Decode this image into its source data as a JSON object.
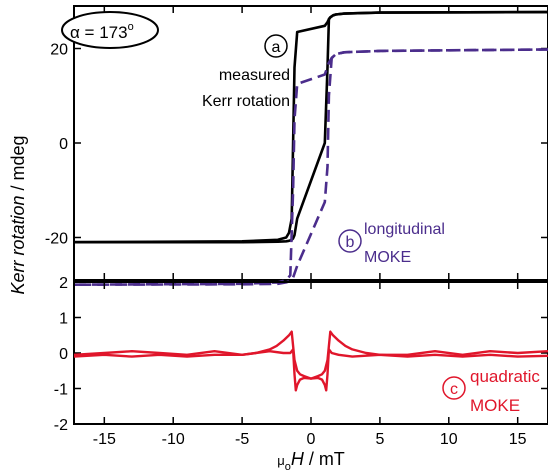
{
  "colors": {
    "measured": "#000000",
    "longitudinal": "#4b2d8c",
    "quadratic": "#e0162b"
  },
  "chart_data": [
    {
      "type": "line",
      "panel": "top",
      "ylabel_italic": "Kerr rotation",
      "ylabel_unit": " / mdeg",
      "xlim": [
        -17.2,
        17.2
      ],
      "ylim": [
        -29,
        29
      ],
      "yticks": [
        20,
        0,
        -20
      ],
      "ytick_labels": [
        "20",
        "0",
        "-20"
      ],
      "angle_label": "α = 173",
      "angle_degree": "o",
      "series": [
        {
          "key": "measured",
          "style": "solid",
          "x": [
            -17.2,
            -5,
            -2.4,
            -1.8,
            -1.6,
            -1.4,
            -1.3,
            -1.2,
            -1.0,
            1.0,
            1.2,
            1.3,
            1.4,
            1.6,
            1.8,
            2.4,
            5,
            17.2
          ],
          "y": [
            -21,
            -20.8,
            -20.5,
            -20.0,
            -19.0,
            -16.0,
            0,
            16.0,
            23.5,
            24.8,
            25.6,
            26.2,
            26.6,
            27.0,
            27.2,
            27.4,
            27.6,
            27.7
          ],
          "x_return": [
            17.2,
            5,
            2.4,
            1.8,
            1.6,
            1.4,
            1.3,
            1.2,
            1.0,
            -1.0,
            -1.2,
            -1.3,
            -1.4,
            -1.6,
            -1.8,
            -2.4,
            -5,
            -17.2
          ],
          "y_return": [
            27.7,
            27.6,
            27.4,
            27.2,
            27.0,
            26.6,
            26.2,
            16.0,
            0,
            -16.0,
            -19.5,
            -20.2,
            -20.5,
            -20.7,
            -20.8,
            -20.9,
            -21,
            -21
          ]
        },
        {
          "key": "longitudinal",
          "style": "dashed",
          "x": [
            -17.2,
            -5,
            -2.4,
            -1.8,
            -1.5,
            -1.3,
            -1.2,
            -1.0,
            1.0,
            1.3,
            1.5,
            1.8,
            2.4,
            5,
            17.2
          ],
          "y": [
            -30,
            -29.8,
            -29.5,
            -29.0,
            -28.0,
            -10,
            5,
            12.5,
            14.5,
            17.0,
            18.0,
            18.8,
            19.2,
            19.5,
            19.8
          ],
          "x_return": [
            17.2,
            5,
            2.4,
            1.8,
            1.5,
            1.3,
            1.2,
            1.0,
            -1.0,
            -1.3,
            -1.5,
            -1.8,
            -2.4,
            -5,
            -17.2
          ],
          "y_return": [
            19.8,
            19.5,
            19.2,
            18.8,
            18.0,
            10,
            -5,
            -12.5,
            -26.0,
            -28.5,
            -29.2,
            -29.5,
            -29.8,
            -29.9,
            -30
          ]
        }
      ],
      "annotations": [
        {
          "key": "a",
          "badge": "a",
          "lines": [
            "measured",
            "Kerr rotation"
          ]
        },
        {
          "key": "b",
          "badge": "b",
          "lines": [
            "longitudinal",
            "MOKE"
          ]
        }
      ]
    },
    {
      "type": "line",
      "panel": "bottom",
      "xlabel_prefix": "μ",
      "xlabel_sub": "o",
      "xlabel_italic": "H",
      "xlabel_unit": " / mT",
      "xlim": [
        -17.2,
        17.2
      ],
      "ylim": [
        -2,
        2
      ],
      "xticks": [
        -15,
        -10,
        -5,
        0,
        5,
        10,
        15
      ],
      "xtick_labels": [
        "-15",
        "-10",
        "-5",
        "0",
        "5",
        "10",
        "15"
      ],
      "yticks": [
        2,
        1,
        0,
        -1,
        -2
      ],
      "ytick_labels": [
        "2",
        "1",
        "0",
        "-1",
        "-2"
      ],
      "series": [
        {
          "key": "quadratic",
          "style": "solid",
          "x": [
            -17.2,
            -15,
            -13,
            -11,
            -9,
            -7,
            -5,
            -4,
            -3,
            -2.5,
            -2,
            -1.6,
            -1.4,
            -1.3,
            -1.2,
            -1.0,
            -0.8,
            -0.5,
            0,
            0.5,
            0.8,
            1.0,
            1.1,
            1.2,
            1.3,
            1.5,
            2,
            3,
            5,
            7,
            9,
            11,
            13,
            15,
            17.2
          ],
          "y": [
            -0.1,
            -0.05,
            -0.1,
            -0.05,
            -0.1,
            -0.05,
            -0.05,
            0.0,
            0.1,
            0.2,
            0.35,
            0.5,
            0.6,
            0.2,
            -0.2,
            -0.5,
            -0.6,
            -0.65,
            -0.72,
            -0.7,
            -0.75,
            -0.9,
            -1.05,
            -0.6,
            0.1,
            0.0,
            -0.05,
            -0.1,
            -0.05,
            -0.1,
            -0.05,
            -0.1,
            -0.05,
            -0.1,
            -0.08
          ],
          "x_return": [
            17.2,
            15,
            13,
            11,
            9,
            7,
            5,
            4,
            3,
            2.5,
            2,
            1.6,
            1.4,
            1.3,
            1.2,
            1.0,
            0.8,
            0.5,
            0,
            -0.5,
            -0.8,
            -1.0,
            -1.1,
            -1.2,
            -1.3,
            -1.5,
            -2,
            -3,
            -5,
            -7,
            -9,
            -11,
            -13,
            -15,
            -17.2
          ],
          "y_return": [
            0.05,
            0.0,
            0.05,
            -0.05,
            0.05,
            -0.05,
            -0.05,
            0.0,
            0.1,
            0.2,
            0.35,
            0.5,
            0.6,
            0.2,
            -0.2,
            -0.5,
            -0.6,
            -0.65,
            -0.72,
            -0.7,
            -0.75,
            -0.9,
            -1.05,
            -0.6,
            0.1,
            0.0,
            0.0,
            0.05,
            -0.05,
            0.05,
            -0.05,
            0.0,
            0.05,
            0.0,
            -0.05
          ]
        }
      ],
      "annotations": [
        {
          "key": "c",
          "badge": "c",
          "lines": [
            "quadratic",
            "MOKE"
          ]
        }
      ]
    }
  ]
}
